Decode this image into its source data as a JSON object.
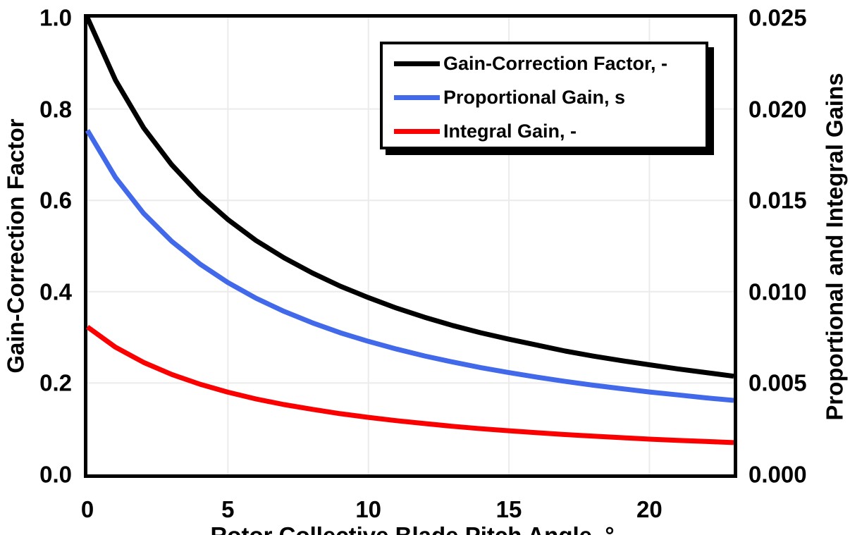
{
  "chart_data": {
    "type": "line",
    "title": "",
    "xlabel": "Rotor Collective Blade Pitch Angle, °",
    "ylabel_left": "Gain-Correction Factor",
    "ylabel_right": "Proportional and Integral Gains",
    "xlim": [
      0,
      23
    ],
    "ylim_left": [
      0.0,
      1.0
    ],
    "ylim_right": [
      0.0,
      0.025
    ],
    "grid": true,
    "legend_position": "top-center-right",
    "ticks": {
      "x": {
        "values": [
          0,
          5,
          10,
          15,
          20
        ],
        "labels": [
          "0",
          "5",
          "10",
          "15",
          "20"
        ]
      },
      "left": {
        "values": [
          0.0,
          0.2,
          0.4,
          0.6,
          0.8,
          1.0
        ],
        "labels": [
          "0.0",
          "0.2",
          "0.4",
          "0.6",
          "0.8",
          "1.0"
        ]
      },
      "right": {
        "values": [
          0.0,
          0.005,
          0.01,
          0.015,
          0.02,
          0.025
        ],
        "labels": [
          "0.000",
          "0.005",
          "0.010",
          "0.015",
          "0.020",
          "0.025"
        ]
      }
    },
    "x": [
      0,
      1,
      2,
      3,
      4,
      5,
      6,
      7,
      8,
      9,
      10,
      11,
      12,
      13,
      14,
      15,
      16,
      17,
      18,
      19,
      20,
      21,
      22,
      23
    ],
    "series": [
      {
        "name": "Gain-Correction Factor, -",
        "axis": "left",
        "color": "#000000",
        "values": [
          1.0,
          0.863,
          0.759,
          0.678,
          0.612,
          0.558,
          0.512,
          0.474,
          0.441,
          0.412,
          0.387,
          0.364,
          0.344,
          0.326,
          0.31,
          0.296,
          0.283,
          0.27,
          0.259,
          0.249,
          0.24,
          0.231,
          0.223,
          0.215
        ]
      },
      {
        "name": "Proportional Gain, s",
        "axis": "right",
        "color": "#4169EA",
        "values": [
          0.01883,
          0.01625,
          0.01429,
          0.01276,
          0.01152,
          0.0105,
          0.00964,
          0.00892,
          0.0083,
          0.00775,
          0.00728,
          0.00686,
          0.00648,
          0.00615,
          0.00584,
          0.00557,
          0.00532,
          0.00509,
          0.00488,
          0.00469,
          0.00451,
          0.00435,
          0.00419,
          0.00405
        ]
      },
      {
        "name": "Integral Gain, -",
        "axis": "right",
        "color": "#FA0000",
        "values": [
          0.00807,
          0.00696,
          0.00613,
          0.00547,
          0.00494,
          0.0045,
          0.00413,
          0.00382,
          0.00356,
          0.00332,
          0.00312,
          0.00294,
          0.00278,
          0.00263,
          0.0025,
          0.00239,
          0.00228,
          0.00218,
          0.00209,
          0.00201,
          0.00193,
          0.00186,
          0.0018,
          0.00174
        ]
      }
    ]
  },
  "style_colors": {
    "background": "#FFFFFF",
    "axis_frame": "#000000",
    "gridline": "#EBEBEB",
    "text": "#000000",
    "legend_border": "#000000",
    "legend_shadow": "#000000"
  }
}
